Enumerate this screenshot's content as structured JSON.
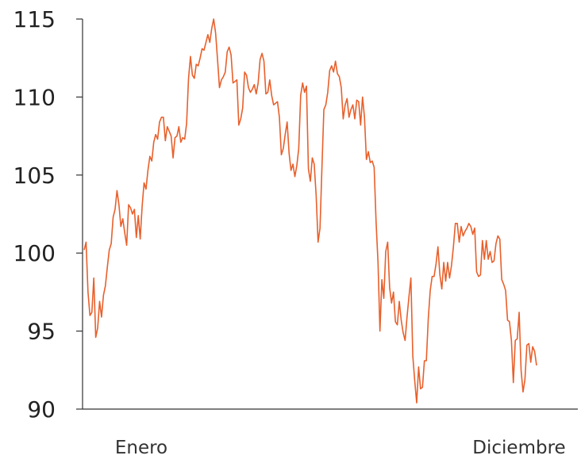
{
  "chart_data": {
    "type": "line",
    "title": "",
    "xlabel": "",
    "ylabel": "",
    "ylim": [
      90,
      115
    ],
    "y_ticks": [
      90,
      95,
      100,
      105,
      110,
      115
    ],
    "y_tick_labels": [
      "90",
      "95",
      "100",
      "105",
      "110",
      "115"
    ],
    "x_tick_labels": [
      "Enero",
      "Diciembre"
    ],
    "xlim": [
      0,
      200
    ],
    "grid": false,
    "legend": "none",
    "line_color": "#E8602C",
    "axis_color": "#333333",
    "series": [
      {
        "values": [
          100.2,
          100.7,
          97.5,
          96.0,
          96.2,
          98.4,
          94.6,
          95.2,
          96.9,
          95.9,
          97.3,
          97.9,
          99.1,
          100.2,
          100.6,
          102.3,
          102.8,
          104.0,
          103.1,
          101.7,
          102.2,
          101.3,
          100.5,
          103.1,
          102.9,
          102.5,
          102.8,
          101.0,
          102.4,
          100.9,
          103.0,
          104.5,
          104.1,
          105.3,
          106.2,
          105.9,
          107.1,
          107.6,
          107.3,
          108.4,
          108.7,
          108.7,
          107.2,
          108.1,
          107.8,
          107.5,
          106.1,
          107.4,
          107.5,
          108.1,
          107.1,
          107.4,
          107.3,
          108.3,
          111.2,
          112.6,
          111.4,
          111.2,
          112.1,
          112.0,
          112.5,
          113.1,
          113.0,
          113.5,
          114.0,
          113.5,
          114.4,
          115.0,
          114.1,
          112.4,
          110.6,
          111.1,
          111.3,
          111.6,
          112.9,
          113.2,
          112.7,
          110.9,
          111.0,
          111.1,
          108.2,
          108.6,
          109.3,
          111.6,
          111.4,
          110.6,
          110.3,
          110.5,
          110.8,
          110.2,
          110.9,
          112.4,
          112.8,
          112.3,
          110.2,
          110.3,
          111.1,
          110.1,
          109.5,
          109.6,
          109.7,
          108.7,
          106.3,
          106.7,
          107.6,
          108.4,
          106.4,
          105.3,
          105.7,
          104.9,
          105.6,
          106.7,
          110.1,
          110.9,
          110.3,
          110.7,
          105.4,
          104.6,
          106.1,
          105.7,
          103.7,
          100.7,
          101.6,
          105.5,
          109.2,
          109.5,
          110.3,
          111.7,
          112.0,
          111.6,
          112.3,
          111.5,
          111.3,
          110.6,
          108.6,
          109.5,
          109.9,
          108.7,
          109.2,
          109.5,
          108.6,
          109.8,
          109.7,
          108.2,
          110.0,
          108.7,
          106.0,
          106.5,
          105.8,
          105.9,
          105.5,
          102.0,
          99.4,
          95.0,
          98.3,
          97.1,
          100.1,
          100.7,
          97.8,
          96.8,
          97.5,
          95.6,
          95.4,
          96.9,
          95.7,
          94.9,
          94.4,
          95.9,
          97.2,
          98.4,
          93.4,
          91.8,
          90.4,
          92.7,
          91.3,
          91.4,
          93.1,
          93.1,
          95.8,
          97.6,
          98.5,
          98.5,
          99.3,
          100.4,
          98.6,
          97.7,
          99.4,
          98.2,
          99.4,
          98.4,
          99.2,
          100.4,
          101.9,
          101.9,
          100.7,
          101.7,
          101.1,
          101.4,
          101.6,
          101.9,
          101.7,
          101.2,
          101.6,
          98.8,
          98.5,
          98.6,
          100.8,
          99.6,
          100.8,
          99.6,
          100.1,
          99.4,
          99.5,
          100.6,
          101.1,
          100.9,
          98.3,
          98.0,
          97.6,
          95.7,
          95.6,
          94.4,
          91.7,
          94.4,
          94.5,
          96.2,
          92.5,
          91.1,
          91.9,
          94.1,
          94.2,
          93.0,
          94.0,
          93.7,
          92.8
        ]
      }
    ]
  }
}
